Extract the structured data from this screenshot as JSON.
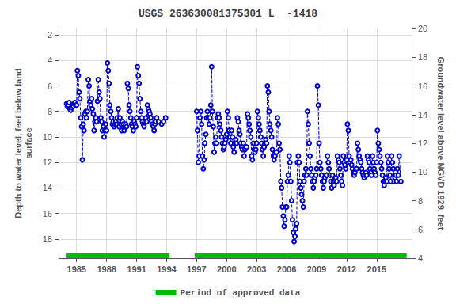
{
  "chart_data": {
    "type": "line",
    "title": "USGS 263630081375301 L  -1418",
    "ylabel": "Depth to water level, feet below land\nsurface",
    "y2label": "Groundwater level above NGVD 1929, feet",
    "xlim": [
      1983.2,
      2018.5
    ],
    "xticks": [
      1985,
      1988,
      1991,
      1994,
      1997,
      2000,
      2003,
      2006,
      2009,
      2012,
      2015
    ],
    "ylim": [
      19.5,
      1.5
    ],
    "yticks": [
      2,
      4,
      6,
      8,
      10,
      12,
      14,
      16,
      18
    ],
    "y2lim": [
      4,
      20
    ],
    "y2ticks": [
      4,
      6,
      8,
      10,
      12,
      14,
      16,
      18,
      20
    ],
    "grid": true,
    "legend": "bottom",
    "series": [
      {
        "type": "line",
        "color": "#0000CC",
        "marker": "circle",
        "line_style": "dashed",
        "x": [
          1984.0,
          1984.08,
          1984.17,
          1984.25,
          1984.33,
          1984.42,
          1984.5,
          1984.58,
          1984.67,
          1984.75,
          1984.83,
          1984.92,
          null,
          1985.0,
          1985.08,
          1985.17,
          1985.25,
          1985.33,
          1985.42,
          1985.5,
          1985.58,
          1985.67,
          1985.75,
          1985.83,
          1985.92,
          null,
          1986.0,
          1986.08,
          1986.17,
          1986.25,
          1986.33,
          1986.42,
          1986.5,
          1986.58,
          1986.67,
          1986.75,
          1986.83,
          1986.92,
          null,
          1987.0,
          1987.08,
          1987.17,
          1987.25,
          1987.33,
          1987.42,
          1987.5,
          1987.58,
          1987.67,
          1987.75,
          1987.83,
          1987.92,
          null,
          1988.0,
          1988.08,
          1988.17,
          1988.25,
          1988.33,
          1988.42,
          1988.5,
          1988.58,
          1988.67,
          1988.75,
          1988.83,
          1988.92,
          null,
          1989.0,
          1989.08,
          1989.17,
          1989.25,
          1989.33,
          1989.42,
          1989.5,
          1989.58,
          1989.67,
          1989.75,
          1989.83,
          1989.92,
          null,
          1990.0,
          1990.08,
          1990.17,
          1990.25,
          1990.33,
          1990.42,
          1990.5,
          1990.58,
          1990.67,
          1990.75,
          1990.83,
          1990.92,
          null,
          1991.0,
          1991.08,
          1991.17,
          1991.25,
          1991.33,
          1991.42,
          1991.5,
          1991.58,
          1991.67,
          1991.75,
          1991.83,
          1991.92,
          null,
          1992.0,
          1992.08,
          1992.17,
          1992.25,
          1992.33,
          1992.42,
          1992.5,
          1992.58,
          1992.67,
          1992.75,
          1992.83,
          1992.92,
          null,
          1993.0,
          1993.2,
          1993.5,
          1993.7,
          1993.9,
          null,
          1997.0,
          1997.08,
          1997.17,
          1997.25,
          1997.33,
          1997.42,
          1997.5,
          1997.58,
          1997.67,
          1997.75,
          1997.83,
          1997.92,
          null,
          1998.0,
          1998.08,
          1998.17,
          1998.25,
          1998.33,
          1998.42,
          1998.5,
          1998.58,
          1998.67,
          1998.75,
          1998.83,
          1998.92,
          null,
          1999.0,
          1999.08,
          1999.17,
          1999.25,
          1999.33,
          1999.42,
          1999.5,
          1999.58,
          1999.67,
          1999.75,
          1999.83,
          1999.92,
          null,
          2000.0,
          2000.08,
          2000.17,
          2000.25,
          2000.33,
          2000.42,
          2000.5,
          2000.58,
          2000.67,
          2000.75,
          2000.83,
          2000.92,
          null,
          2001.0,
          2001.08,
          2001.17,
          2001.25,
          2001.33,
          2001.42,
          2001.5,
          2001.58,
          2001.67,
          2001.75,
          2001.83,
          2001.92,
          null,
          2002.0,
          2002.08,
          2002.17,
          2002.25,
          2002.33,
          2002.42,
          2002.5,
          2002.58,
          2002.67,
          2002.75,
          2002.83,
          2002.92,
          null,
          2003.0,
          2003.08,
          2003.17,
          2003.25,
          2003.33,
          2003.42,
          2003.5,
          2003.58,
          2003.67,
          2003.75,
          2003.83,
          2003.92,
          null,
          2004.0,
          2004.08,
          2004.17,
          2004.25,
          2004.33,
          2004.42,
          2004.5,
          2004.58,
          2004.67,
          2004.75,
          2004.83,
          2004.92,
          null,
          2005.0,
          2005.08,
          2005.17,
          2005.25,
          2005.33,
          2005.42,
          2005.5,
          2005.58,
          2005.67,
          2005.75,
          2005.83,
          2005.92,
          null,
          2006.0,
          2006.08,
          2006.17,
          2006.25,
          2006.33,
          2006.42,
          2006.5,
          2006.58,
          2006.67,
          2006.75,
          2006.83,
          2006.92,
          null,
          2007.0,
          2007.08,
          2007.17,
          2007.25,
          2007.33,
          2007.42,
          2007.5,
          2007.58,
          2007.67,
          2007.75,
          2007.83,
          2007.92,
          null,
          2008.0,
          2008.08,
          2008.17,
          2008.25,
          2008.33,
          2008.42,
          2008.5,
          2008.58,
          2008.67,
          2008.75,
          2008.83,
          2008.92,
          null,
          2009.0,
          2009.08,
          2009.17,
          2009.25,
          2009.33,
          2009.42,
          2009.5,
          2009.58,
          2009.67,
          2009.75,
          2009.83,
          2009.92,
          null,
          2010.0,
          2010.08,
          2010.17,
          2010.25,
          2010.33,
          2010.42,
          2010.5,
          2010.58,
          2010.67,
          2010.75,
          2010.83,
          2010.92,
          null,
          2011.0,
          2011.08,
          2011.17,
          2011.25,
          2011.33,
          2011.42,
          2011.5,
          2011.58,
          2011.67,
          2011.75,
          2011.83,
          2011.92,
          null,
          2012.0,
          2012.08,
          2012.17,
          2012.25,
          2012.33,
          2012.42,
          2012.5,
          2012.58,
          2012.67,
          2012.75,
          2012.83,
          2012.92,
          null,
          2013.0,
          2013.08,
          2013.17,
          2013.25,
          2013.33,
          2013.42,
          2013.5,
          2013.58,
          2013.67,
          2013.75,
          2013.83,
          2013.92,
          null,
          2014.0,
          2014.08,
          2014.17,
          2014.25,
          2014.33,
          2014.42,
          2014.5,
          2014.58,
          2014.67,
          2014.75,
          2014.83,
          2014.92,
          null,
          2015.0,
          2015.08,
          2015.17,
          2015.25,
          2015.33,
          2015.42,
          2015.5,
          2015.58,
          2015.67,
          2015.75,
          2015.83,
          2015.92,
          null,
          2016.0,
          2016.08,
          2016.17,
          2016.25,
          2016.33,
          2016.42,
          2016.5,
          2016.58,
          2016.67,
          2016.75,
          2016.83,
          2016.92,
          null,
          2017.0,
          2017.08,
          2017.17,
          2017.25,
          2017.42
        ],
        "values": [
          7.4,
          7.6,
          7.5,
          7.3,
          7.8,
          7.9,
          7.7,
          7.5,
          7.6,
          7.4,
          7.3,
          7.5,
          null,
          7.5,
          4.8,
          5.2,
          6.5,
          7.0,
          8.5,
          9.2,
          11.8,
          9.0,
          9.5,
          8.2,
          8.0,
          null,
          8.5,
          8.0,
          5.5,
          6.0,
          7.2,
          7.5,
          7.0,
          7.8,
          8.2,
          9.5,
          8.8,
          8.5,
          null,
          8.8,
          7.2,
          5.5,
          6.5,
          7.0,
          8.5,
          8.8,
          9.5,
          9.2,
          10.0,
          9.5,
          9.0,
          null,
          9.5,
          4.2,
          4.8,
          5.8,
          7.5,
          8.0,
          8.5,
          9.0,
          8.8,
          9.2,
          9.0,
          8.8,
          null,
          9.0,
          8.5,
          7.8,
          9.2,
          8.5,
          9.0,
          9.5,
          8.8,
          9.0,
          9.5,
          9.2,
          9.0,
          null,
          9.2,
          5.8,
          6.2,
          7.5,
          8.0,
          8.5,
          9.0,
          9.2,
          9.5,
          8.8,
          9.0,
          9.2,
          null,
          8.5,
          4.5,
          5.2,
          5.8,
          7.0,
          8.0,
          8.5,
          8.8,
          9.0,
          9.2,
          8.8,
          8.5,
          null,
          8.8,
          7.5,
          7.8,
          8.0,
          8.2,
          8.5,
          8.8,
          9.0,
          9.2,
          9.5,
          9.0,
          8.8,
          null,
          8.5,
          8.8,
          9.0,
          8.8,
          8.5,
          null,
          8.0,
          9.5,
          12.0,
          11.5,
          8.5,
          8.0,
          9.0,
          11.5,
          12.5,
          11.8,
          10.5,
          9.8,
          null,
          8.5,
          8.0,
          8.5,
          9.0,
          8.5,
          7.5,
          4.5,
          8.0,
          9.2,
          11.2,
          10.5,
          10.0,
          null,
          10.5,
          8.5,
          8.2,
          8.5,
          9.0,
          9.5,
          10.0,
          10.5,
          11.0,
          10.8,
          10.5,
          10.2,
          null,
          9.8,
          8.0,
          8.5,
          9.5,
          10.0,
          10.5,
          9.5,
          10.0,
          10.8,
          11.2,
          10.5,
          10.2,
          null,
          10.5,
          8.5,
          8.8,
          9.5,
          9.8,
          10.5,
          10.8,
          11.0,
          10.5,
          11.5,
          11.0,
          10.8,
          null,
          10.8,
          8.2,
          8.5,
          9.0,
          9.5,
          10.0,
          11.5,
          11.8,
          10.5,
          11.0,
          11.2,
          11.0,
          null,
          10.5,
          8.0,
          8.5,
          9.0,
          9.5,
          10.0,
          10.5,
          11.0,
          11.5,
          10.8,
          10.5,
          10.2,
          null,
          10.5,
          6.0,
          6.5,
          8.0,
          9.0,
          9.5,
          10.0,
          11.0,
          11.5,
          11.8,
          11.5,
          11.2,
          null,
          11.2,
          8.5,
          9.0,
          10.5,
          11.0,
          13.5,
          14.0,
          15.5,
          16.2,
          17.0,
          16.5,
          15.5,
          null,
          15.5,
          13.5,
          13.0,
          11.5,
          12.0,
          13.5,
          15.0,
          16.5,
          17.5,
          18.2,
          17.8,
          17.2,
          null,
          16.8,
          12.0,
          11.5,
          12.0,
          13.5,
          14.0,
          14.5,
          15.0,
          15.5,
          13.5,
          13.0,
          12.5,
          null,
          13.0,
          8.0,
          9.0,
          10.5,
          11.5,
          12.5,
          13.0,
          13.5,
          14.0,
          13.5,
          13.2,
          13.0,
          null,
          12.5,
          6.0,
          7.5,
          10.5,
          12.0,
          12.5,
          13.0,
          13.5,
          14.0,
          13.5,
          13.2,
          13.0,
          null,
          13.0,
          11.5,
          12.0,
          12.5,
          13.0,
          13.5,
          14.0,
          13.0,
          13.5,
          13.8,
          13.5,
          13.2,
          null,
          13.5,
          11.5,
          11.8,
          12.0,
          12.5,
          13.0,
          13.5,
          13.8,
          11.5,
          12.0,
          12.2,
          12.5,
          null,
          11.8,
          9.0,
          9.5,
          11.5,
          12.0,
          11.8,
          12.2,
          12.5,
          12.8,
          13.0,
          12.8,
          12.5,
          null,
          12.5,
          10.5,
          11.0,
          11.5,
          11.8,
          12.0,
          12.5,
          12.8,
          13.0,
          13.2,
          13.0,
          12.8,
          null,
          13.0,
          11.5,
          11.8,
          12.0,
          12.5,
          12.8,
          13.0,
          11.5,
          12.0,
          12.5,
          12.8,
          13.0,
          null,
          12.0,
          9.5,
          10.5,
          11.0,
          11.5,
          12.0,
          12.5,
          13.0,
          13.5,
          13.8,
          13.5,
          13.2,
          null,
          13.5,
          11.5,
          12.0,
          12.5,
          13.0,
          13.5,
          11.5,
          12.0,
          12.5,
          13.5,
          13.2,
          13.0,
          null,
          13.5,
          12.5,
          13.0,
          11.5,
          13.5
        ]
      },
      {
        "type": "band",
        "name": "Period of approved data",
        "color": "#00BB00",
        "periods": [
          [
            1984.0,
            1994.3
          ],
          [
            1996.8,
            2018.0
          ]
        ]
      }
    ]
  }
}
